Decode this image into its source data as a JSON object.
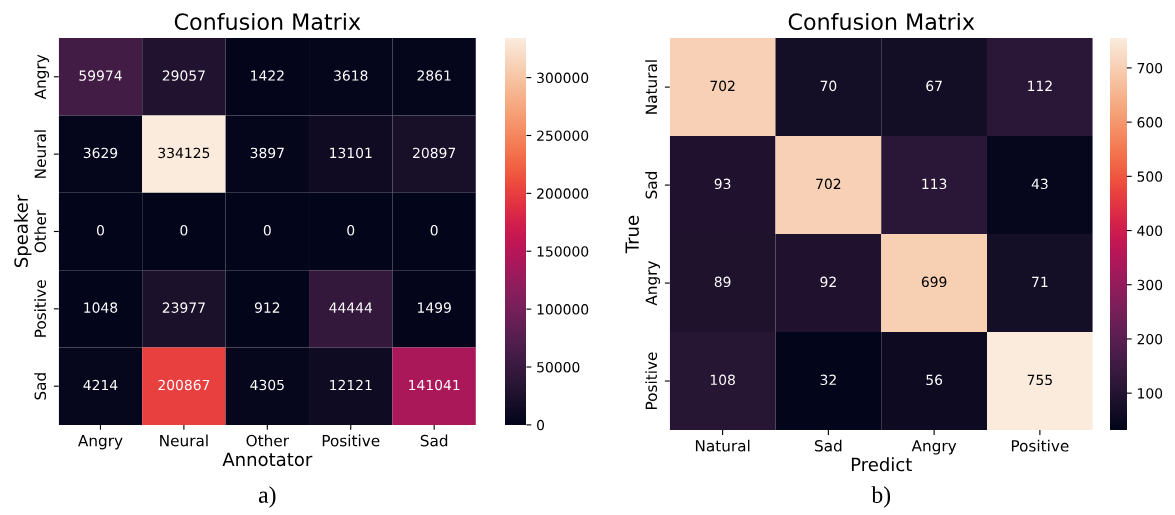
{
  "chart_data": [
    {
      "type": "heatmap",
      "title": "Confusion Matrix",
      "xlabel": "Annotator",
      "ylabel": "Speaker",
      "categories": [
        "Angry",
        "Neural",
        "Other",
        "Positive",
        "Sad"
      ],
      "y_categories": [
        "Angry",
        "Neural",
        "Other",
        "Positive",
        "Sad"
      ],
      "cells": [
        [
          59974,
          29057,
          1422,
          3618,
          2861
        ],
        [
          3629,
          334125,
          3897,
          13101,
          20897
        ],
        [
          0,
          0,
          0,
          0,
          0
        ],
        [
          1048,
          23977,
          912,
          44444,
          1499
        ],
        [
          4214,
          200867,
          4305,
          12121,
          141041
        ]
      ],
      "data_labels": true,
      "clim": [
        0,
        334125
      ],
      "cticks": [
        0,
        50000,
        100000,
        150000,
        200000,
        250000,
        300000
      ],
      "annotations": [
        "a)"
      ]
    },
    {
      "type": "heatmap",
      "title": "Confusion Matrix",
      "xlabel": "Predict",
      "ylabel": "True",
      "categories": [
        "Natural",
        "Sad",
        "Angry",
        "Positive"
      ],
      "y_categories": [
        "Natural",
        "Sad",
        "Angry",
        "Positive"
      ],
      "cells": [
        [
          702,
          70,
          67,
          112
        ],
        [
          93,
          702,
          113,
          43
        ],
        [
          89,
          92,
          699,
          71
        ],
        [
          108,
          32,
          56,
          755
        ]
      ],
      "data_labels": true,
      "clim": [
        32,
        755
      ],
      "cticks": [
        100,
        200,
        300,
        400,
        500,
        600,
        700
      ],
      "annotations": [
        "b)"
      ]
    }
  ]
}
